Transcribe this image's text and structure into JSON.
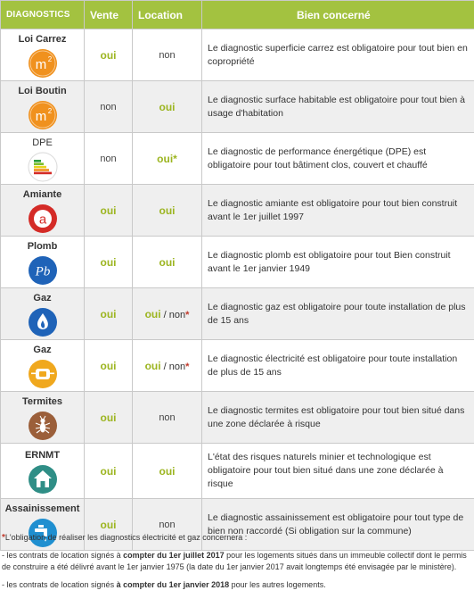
{
  "header": {
    "col1": "Diagnostics",
    "col2": "Vente",
    "col3": "Location",
    "col4": "Bien concerné"
  },
  "colors": {
    "header_green": "#a3c240",
    "oui_green": "#9cb520",
    "icon_orange": "#f0911e",
    "icon_red": "#d42b27",
    "icon_blue": "#1f63b8",
    "icon_teal": "#2f8e86",
    "icon_brown": "#9b5f3a",
    "asterisk_red": "#c0392b"
  },
  "rows": [
    {
      "name": "Loi Carrez",
      "icon": "m2-icon",
      "vente": "oui",
      "location": "non",
      "location_extra": "",
      "desc": "Le diagnostic superficie carrez est obligatoire pour tout bien en copropriété"
    },
    {
      "name": "Loi Boutin",
      "icon": "m2-icon",
      "vente": "non",
      "location": "oui",
      "location_extra": "",
      "desc": "Le diagnostic surface habitable est obligatoire pour tout bien à usage d'habitation"
    },
    {
      "name": "DPE",
      "icon": "energy-label-icon",
      "vente": "non",
      "location": "oui",
      "location_extra": "*",
      "desc": "Le diagnostic  de performance énergétique (DPE) est obligatoire pour tout bâtiment clos, couvert et chauffé"
    },
    {
      "name": "Amiante",
      "icon": "asbestos-a-icon",
      "vente": "oui",
      "location": "oui",
      "location_extra": "",
      "desc": "Le diagnostic amiante est obligatoire pour tout bien construit avant le 1er juillet 1997"
    },
    {
      "name": "Plomb",
      "icon": "lead-pb-icon",
      "vente": "oui",
      "location": "oui",
      "location_extra": "",
      "desc": "Le diagnostic plomb est obligatoire pour tout Bien construit avant le 1er janvier 1949"
    },
    {
      "name": "Gaz",
      "icon": "gas-flame-icon",
      "vente": "oui",
      "location": "oui",
      "location_extra": "/ non*",
      "desc": "Le diagnostic gaz est obligatoire pour toute installation de plus de 15 ans"
    },
    {
      "name": "Gaz",
      "icon": "electric-plug-icon",
      "vente": "oui",
      "location": "oui",
      "location_extra": "/ non*",
      "desc": "Le diagnostic électricité est obligatoire pour toute installation de plus de 15 ans"
    },
    {
      "name": "Termites",
      "icon": "termite-icon",
      "vente": "oui",
      "location": "non",
      "location_extra": "",
      "desc": "Le diagnostic termites est obligatoire pour tout bien situé dans une zone déclarée à risque"
    },
    {
      "name": "ERNMT",
      "icon": "house-risk-icon",
      "vente": "oui",
      "location": "oui",
      "location_extra": "",
      "desc": "L'état des risques naturels minier et technologique est obligatoire pour tout bien situé dans une zone déclarée à risque"
    },
    {
      "name": "Assainissement",
      "icon": "faucet-icon",
      "vente": "oui",
      "location": "non",
      "location_extra": "",
      "desc": "Le diagnostic assainissement est obligatoire pour tout type de bien non raccordé (Si obligation sur la commune)"
    }
  ],
  "notes": {
    "star": "*",
    "intro": "L'obligation de réaliser les diagnostics électricité et gaz concernera :",
    "item1_pre": "- les contrats de location signés à ",
    "item1_bold": "compter du 1er juillet 2017",
    "item1_post": " pour les logements situés dans un immeuble collectif dont le permis de construire a été délivré avant le 1er janvier 1975 (la date du 1er janvier 2017 avait longtemps été envisagée par le ministère).",
    "item2_pre": "- les contrats de location signés ",
    "item2_bold": "à compter du 1er janvier 2018",
    "item2_post": " pour les autres logements."
  }
}
